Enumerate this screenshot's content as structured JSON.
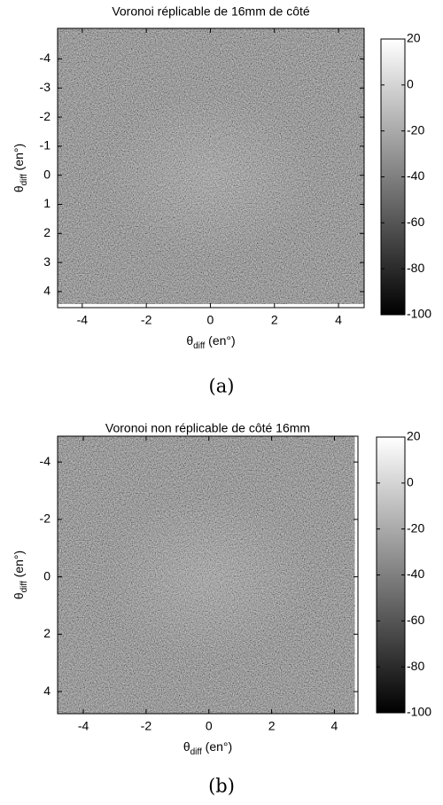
{
  "chart_data": [
    {
      "type": "image",
      "title": "Voronoi réplicable de 16mm de côté",
      "xlabel": [
        "θ",
        "diff",
        " (en°)"
      ],
      "ylabel": [
        "θ",
        "diff",
        " (en°)"
      ],
      "xlim": [
        -4.77,
        4.8
      ],
      "ylim": [
        -5.05,
        4.55
      ],
      "y_reversed": true,
      "extent": [
        -4.77,
        4.8,
        -5.05,
        4.42
      ],
      "xticks": [
        -4,
        -2,
        0,
        2,
        4
      ],
      "yticks": [
        -4,
        -3,
        -2,
        -1,
        0,
        1,
        2,
        3,
        4
      ],
      "clim": [
        -100,
        20
      ],
      "cticks": [
        -100,
        -80,
        -60,
        -40,
        -20,
        0,
        20
      ],
      "colormap": "gray",
      "caption": "(a)"
    },
    {
      "type": "image",
      "title": "Voronoi non réplicable de côté 16mm",
      "xlabel": [
        "θ",
        "diff",
        " (en°)"
      ],
      "ylabel": [
        "θ",
        "diff",
        " (en°)"
      ],
      "xlim": [
        -4.82,
        4.75
      ],
      "ylim": [
        -4.9,
        4.77
      ],
      "y_reversed": true,
      "extent": [
        -4.82,
        4.65,
        -4.9,
        4.77
      ],
      "xticks": [
        -4,
        -2,
        0,
        2,
        4
      ],
      "yticks": [
        -4,
        -2,
        0,
        2,
        4
      ],
      "clim": [
        -100,
        20
      ],
      "cticks": [
        -100,
        -80,
        -60,
        -40,
        -20,
        0,
        20
      ],
      "colormap": "gray",
      "caption": "(b)"
    }
  ]
}
